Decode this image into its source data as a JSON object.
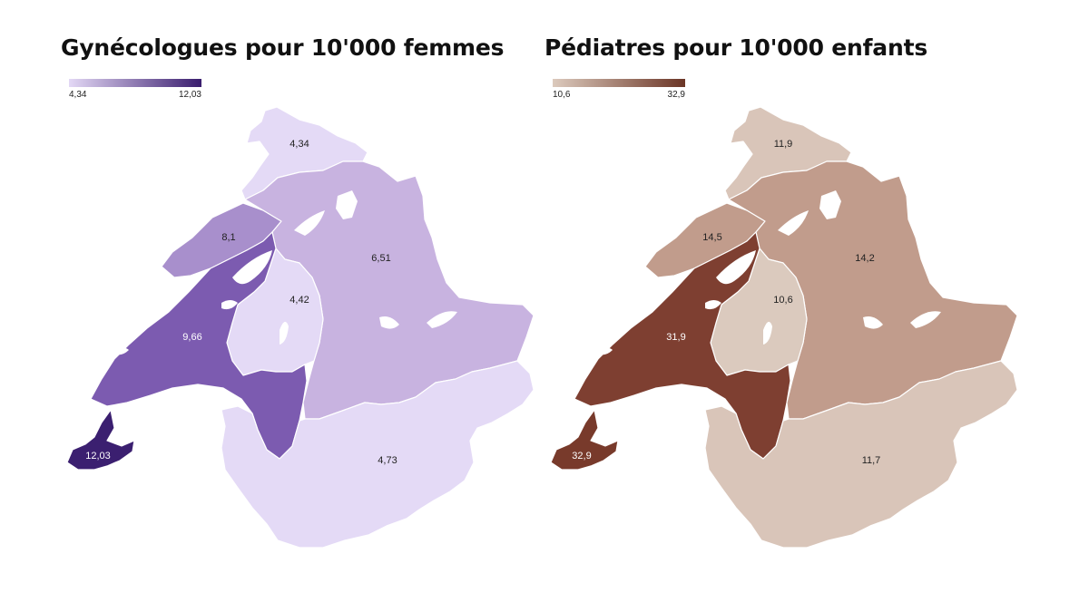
{
  "maps": [
    {
      "title": "Gynécologues pour 10'000 femmes",
      "legend": {
        "min": "4,34",
        "max": "12,03",
        "color_min": "#e3d8f5",
        "color_max": "#3a1d6e"
      },
      "regions": [
        {
          "id": "jura-bernois",
          "value": "4,34",
          "color": "#e4daf6",
          "label_color": "#222222"
        },
        {
          "id": "nord-vaudois",
          "value": "8,1",
          "color": "#a88fcc",
          "label_color": "#222222"
        },
        {
          "id": "bern",
          "value": "6,51",
          "color": "#c8b3e0",
          "label_color": "#222222"
        },
        {
          "id": "fribourg",
          "value": "4,42",
          "color": "#e4daf6",
          "label_color": "#222222"
        },
        {
          "id": "vaud-central",
          "value": "9,66",
          "color": "#7c5bb0",
          "label_color": "#ffffff"
        },
        {
          "id": "geneve",
          "value": "12,03",
          "color": "#3b1f70",
          "label_color": "#ffffff"
        },
        {
          "id": "valais",
          "value": "4,73",
          "color": "#e4daf6",
          "label_color": "#222222"
        }
      ]
    },
    {
      "title": "Pédiatres pour 10'000 enfants",
      "legend": {
        "min": "10,6",
        "max": "32,9",
        "color_min": "#dccabd",
        "color_max": "#6b3526"
      },
      "regions": [
        {
          "id": "jura-bernois",
          "value": "11,9",
          "color": "#d9c5b9",
          "label_color": "#222222"
        },
        {
          "id": "nord-vaudois",
          "value": "14,5",
          "color": "#c19c8c",
          "label_color": "#222222"
        },
        {
          "id": "bern",
          "value": "14,2",
          "color": "#c19c8c",
          "label_color": "#222222"
        },
        {
          "id": "fribourg",
          "value": "10,6",
          "color": "#dbcabe",
          "label_color": "#222222"
        },
        {
          "id": "vaud-central",
          "value": "31,9",
          "color": "#7e3f31",
          "label_color": "#ffffff"
        },
        {
          "id": "geneve",
          "value": "32,9",
          "color": "#783a2b",
          "label_color": "#ffffff"
        },
        {
          "id": "valais",
          "value": "11,7",
          "color": "#d9c5b9",
          "label_color": "#222222"
        }
      ]
    }
  ]
}
